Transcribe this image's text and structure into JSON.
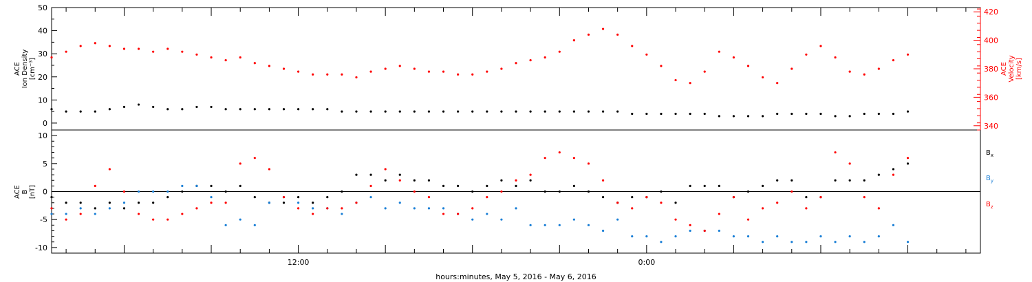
{
  "chart_data": [
    {
      "type": "scatter",
      "panel": "top",
      "ylabel_lines": [
        "ACE",
        "Ion Density",
        "[cm⁻³]"
      ],
      "y2label_lines": [
        "ACE",
        "Velocity",
        "[km/s]"
      ],
      "ylim": [
        -3,
        50
      ],
      "y_ticks": [
        "0",
        "10",
        "20",
        "30",
        "40",
        "50"
      ],
      "y2lim": [
        337,
        423
      ],
      "y2_ticks": [
        "340",
        "360",
        "380",
        "400",
        "420"
      ],
      "colors": {
        "density": "#000000",
        "velocity": "#ff0000"
      },
      "series": [
        {
          "name": "",
          "axis": "left",
          "color": "#000000",
          "x_hours": [
            0,
            0.5,
            1,
            1.5,
            2,
            2.5,
            3,
            3.5,
            4,
            4.5,
            5,
            5.5,
            6,
            6.5,
            7,
            7.5,
            8,
            8.5,
            9,
            9.5,
            10,
            10.5,
            11,
            11.5,
            12,
            12.5,
            13,
            13.5,
            14,
            14.5,
            15,
            15.5,
            16,
            16.5,
            17,
            17.5,
            18,
            18.5,
            19,
            19.5,
            20,
            20.5,
            21,
            21.5,
            22,
            22.5,
            23,
            23.5,
            24,
            24.5,
            25,
            25.5,
            26,
            26.5,
            27,
            27.5,
            28,
            28.5,
            29,
            29.5
          ],
          "values": [
            6,
            5,
            5,
            5,
            6,
            7,
            8,
            7,
            6,
            6,
            7,
            7,
            6,
            6,
            6,
            6,
            6,
            6,
            6,
            6,
            5,
            5,
            5,
            5,
            5,
            5,
            5,
            5,
            5,
            5,
            5,
            5,
            5,
            5,
            5,
            5,
            5,
            5,
            5,
            5,
            4,
            4,
            4,
            4,
            4,
            4,
            3,
            3,
            3,
            3,
            4,
            4,
            4,
            4,
            3,
            3,
            4,
            4,
            4,
            5
          ]
        },
        {
          "name": "",
          "axis": "right",
          "color": "#ff0000",
          "x_hours": [
            0,
            0.5,
            1,
            1.5,
            2,
            2.5,
            3,
            3.5,
            4,
            4.5,
            5,
            5.5,
            6,
            6.5,
            7,
            7.5,
            8,
            8.5,
            9,
            9.5,
            10,
            10.5,
            11,
            11.5,
            12,
            12.5,
            13,
            13.5,
            14,
            14.5,
            15,
            15.5,
            16,
            16.5,
            17,
            17.5,
            18,
            18.5,
            19,
            19.5,
            20,
            20.5,
            21,
            21.5,
            22,
            22.5,
            23,
            23.5,
            24,
            24.5,
            25,
            25.5,
            26,
            26.5,
            27,
            27.5,
            28,
            28.5,
            29,
            29.5
          ],
          "values": [
            388,
            392,
            396,
            398,
            396,
            394,
            394,
            392,
            394,
            392,
            390,
            388,
            386,
            388,
            384,
            382,
            380,
            378,
            376,
            376,
            376,
            374,
            378,
            380,
            382,
            380,
            378,
            378,
            376,
            376,
            378,
            380,
            384,
            386,
            388,
            392,
            400,
            404,
            408,
            404,
            396,
            390,
            382,
            372,
            370,
            378,
            392,
            388,
            382,
            374,
            370,
            380,
            390,
            396,
            388,
            378,
            376,
            380,
            386,
            390
          ]
        }
      ]
    },
    {
      "type": "scatter",
      "panel": "bottom",
      "ylabel_lines": [
        "ACE",
        "B",
        "[nT]"
      ],
      "ylim": [
        -11,
        11
      ],
      "y_ticks": [
        "-10",
        "-5",
        "0",
        "5",
        "10"
      ],
      "legend": [
        {
          "text": "Bx",
          "main": "B",
          "sub": "x",
          "color": "#000000"
        },
        {
          "text": "By",
          "main": "B",
          "sub": "y",
          "color": "#1a7fd6"
        },
        {
          "text": "Bz",
          "main": "B",
          "sub": "z",
          "color": "#ff0000"
        }
      ],
      "series": [
        {
          "name": "Bx",
          "color": "#000000",
          "x_hours": [
            0,
            0.5,
            1,
            1.5,
            2,
            2.5,
            3,
            3.5,
            4,
            4.5,
            5,
            5.5,
            6,
            6.5,
            7,
            7.5,
            8,
            8.5,
            9,
            9.5,
            10,
            10.5,
            11,
            11.5,
            12,
            12.5,
            13,
            13.5,
            14,
            14.5,
            15,
            15.5,
            16,
            16.5,
            17,
            17.5,
            18,
            18.5,
            19,
            19.5,
            20,
            20.5,
            21,
            21.5,
            22,
            22.5,
            23,
            23.5,
            24,
            24.5,
            25,
            25.5,
            26,
            26.5,
            27,
            27.5,
            28,
            28.5,
            29,
            29.5
          ],
          "values": [
            -1,
            -2,
            -2,
            -3,
            -2,
            -3,
            -2,
            -2,
            -1,
            0,
            1,
            1,
            0,
            1,
            -1,
            -2,
            -2,
            -1,
            -2,
            -1,
            0,
            3,
            3,
            2,
            3,
            2,
            2,
            1,
            1,
            0,
            1,
            2,
            1,
            2,
            0,
            0,
            1,
            0,
            -1,
            -2,
            -1,
            -1,
            0,
            -2,
            1,
            1,
            1,
            -1,
            0,
            1,
            2,
            2,
            -1,
            -1,
            2,
            2,
            2,
            3,
            4,
            5
          ]
        },
        {
          "name": "By",
          "color": "#1a7fd6",
          "x_hours": [
            0,
            0.5,
            1,
            1.5,
            2,
            2.5,
            3,
            3.5,
            4,
            4.5,
            5,
            5.5,
            6,
            6.5,
            7,
            7.5,
            8,
            8.5,
            9,
            9.5,
            10,
            10.5,
            11,
            11.5,
            12,
            12.5,
            13,
            13.5,
            14,
            14.5,
            15,
            15.5,
            16,
            16.5,
            17,
            17.5,
            18,
            18.5,
            19,
            19.5,
            20,
            20.5,
            21,
            21.5,
            22,
            22.5,
            23,
            23.5,
            24,
            24.5,
            25,
            25.5,
            26,
            26.5,
            27,
            27.5,
            28,
            28.5,
            29,
            29.5
          ],
          "values": [
            -4,
            -4,
            -3,
            -4,
            -3,
            -2,
            0,
            0,
            0,
            1,
            1,
            -1,
            -6,
            -5,
            -6,
            -2,
            -1,
            -2,
            -3,
            -3,
            -4,
            -2,
            -1,
            -3,
            -2,
            -3,
            -3,
            -3,
            -4,
            -5,
            -4,
            -5,
            -3,
            -6,
            -6,
            -6,
            -5,
            -6,
            -7,
            -5,
            -8,
            -8,
            -9,
            -8,
            -7,
            -7,
            -7,
            -8,
            -8,
            -9,
            -8,
            -9,
            -9,
            -8,
            -9,
            -8,
            -9,
            -8,
            -6,
            -9
          ]
        },
        {
          "name": "Bz",
          "color": "#ff0000",
          "x_hours": [
            0,
            0.5,
            1,
            1.5,
            2,
            2.5,
            3,
            3.5,
            4,
            4.5,
            5,
            5.5,
            6,
            6.5,
            7,
            7.5,
            8,
            8.5,
            9,
            9.5,
            10,
            10.5,
            11,
            11.5,
            12,
            12.5,
            13,
            13.5,
            14,
            14.5,
            15,
            15.5,
            16,
            16.5,
            17,
            17.5,
            18,
            18.5,
            19,
            19.5,
            20,
            20.5,
            21,
            21.5,
            22,
            22.5,
            23,
            23.5,
            24,
            24.5,
            25,
            25.5,
            26,
            26.5,
            27,
            27.5,
            28,
            28.5,
            29,
            29.5
          ],
          "values": [
            -3,
            -5,
            -4,
            1,
            4,
            0,
            -4,
            -5,
            -5,
            -4,
            -3,
            -2,
            -2,
            5,
            6,
            4,
            -1,
            -3,
            -4,
            -3,
            -3,
            -2,
            1,
            4,
            2,
            0,
            -1,
            -4,
            -4,
            -3,
            -1,
            0,
            2,
            3,
            6,
            7,
            6,
            5,
            2,
            -2,
            -3,
            -1,
            -2,
            -5,
            -6,
            -7,
            -4,
            -1,
            -5,
            -3,
            -2,
            0,
            -3,
            -1,
            7,
            5,
            -1,
            -3,
            3,
            6
          ]
        }
      ]
    }
  ],
  "x_axis": {
    "range_hours": [
      0,
      32
    ],
    "labels": [
      {
        "hours": 8.5,
        "text": "12:00"
      },
      {
        "hours": 20.5,
        "text": "0:00"
      }
    ],
    "xlabel": "hours:minutes, May  5, 2016 - May  6, 2016"
  }
}
